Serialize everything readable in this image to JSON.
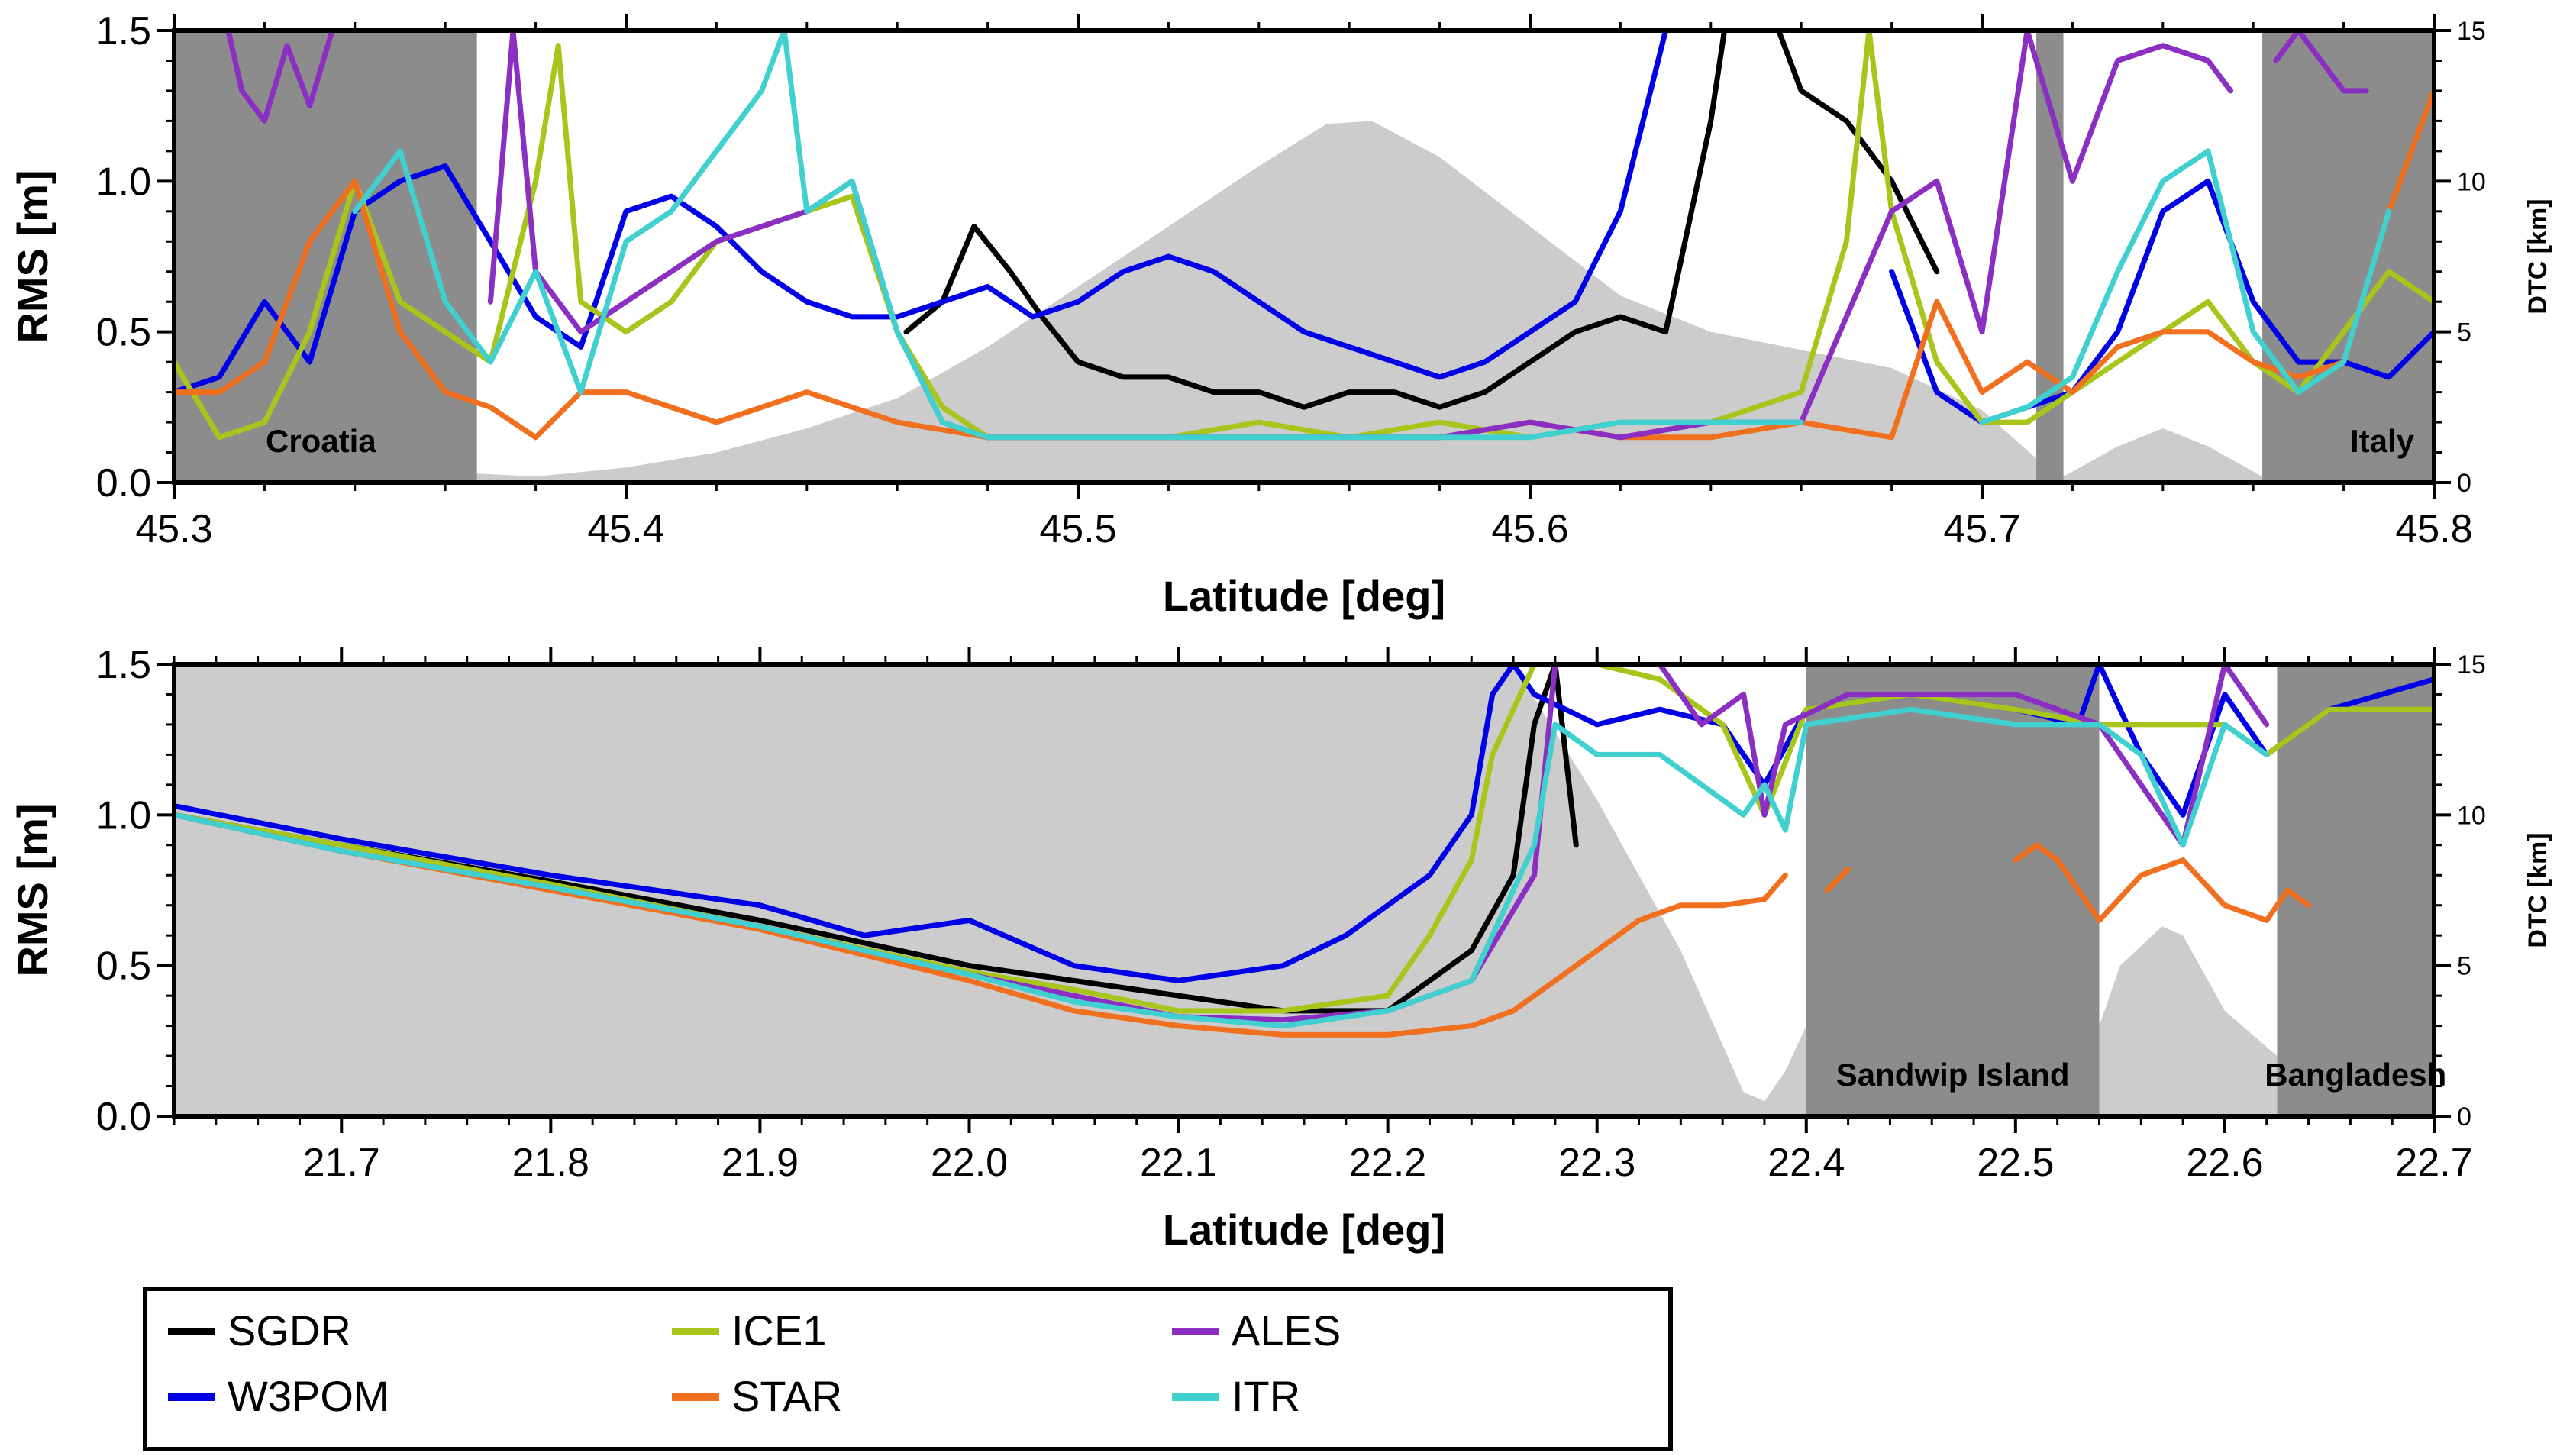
{
  "legend": {
    "entries": [
      {
        "name": "SGDR",
        "color": "#000000"
      },
      {
        "name": "W3POM",
        "color": "#0000e6"
      },
      {
        "name": "ICE1",
        "color": "#a8c51c"
      },
      {
        "name": "STAR",
        "color": "#f07020"
      },
      {
        "name": "ALES",
        "color": "#8a2fc2"
      },
      {
        "name": "ITR",
        "color": "#40d0d0"
      }
    ]
  },
  "chart_data": [
    {
      "type": "line",
      "xlabel": "Latitude [deg]",
      "ylabel": "RMS [m]",
      "y2label": "DTC [km]",
      "xlim": [
        45.3,
        45.8
      ],
      "ylim": [
        0,
        1.5
      ],
      "y2lim": [
        0,
        15
      ],
      "xticks": [
        "45.3",
        "45.4",
        "45.5",
        "45.6",
        "45.7",
        "45.8"
      ],
      "yticks": [
        "0.0",
        "0.5",
        "1.0",
        "1.5"
      ],
      "y2ticks": [
        "0",
        "5",
        "10",
        "15"
      ],
      "land_regions": [
        {
          "x0": 45.3,
          "x1": 45.367,
          "label": "Croatia"
        },
        {
          "x0": 45.712,
          "x1": 45.718,
          "label": ""
        },
        {
          "x0": 45.762,
          "x1": 45.8,
          "label": "Italy"
        }
      ],
      "dtc": {
        "x": [
          45.3,
          45.367,
          45.38,
          45.4,
          45.42,
          45.44,
          45.46,
          45.48,
          45.5,
          45.52,
          45.54,
          45.555,
          45.565,
          45.58,
          45.6,
          45.62,
          45.64,
          45.66,
          45.68,
          45.7,
          45.712,
          45.718,
          45.73,
          45.74,
          45.75,
          45.762,
          45.8
        ],
        "y": [
          0,
          0.3,
          0.2,
          0.5,
          1.0,
          1.8,
          2.8,
          4.5,
          6.5,
          8.5,
          10.5,
          11.9,
          12.0,
          10.8,
          8.5,
          6.2,
          5.0,
          4.4,
          3.8,
          2.4,
          0.8,
          0.2,
          1.2,
          1.8,
          1.2,
          0.2,
          0
        ]
      },
      "series": [
        {
          "name": "SGDR",
          "x": [
            45.462,
            45.47,
            45.477,
            45.485,
            45.492,
            45.5,
            45.51,
            45.52,
            45.53,
            45.54,
            45.55,
            45.56,
            45.57,
            45.58,
            45.59,
            45.6,
            45.61,
            45.62,
            45.63,
            45.64,
            45.643,
            45.645,
            45.655,
            45.66,
            45.67,
            45.68,
            45.69
          ],
          "y": [
            0.5,
            0.6,
            0.85,
            0.7,
            0.55,
            0.4,
            0.35,
            0.35,
            0.3,
            0.3,
            0.25,
            0.3,
            0.3,
            0.25,
            0.3,
            0.4,
            0.5,
            0.55,
            0.5,
            1.2,
            1.5,
            null,
            1.5,
            1.3,
            1.2,
            1.0,
            0.7
          ]
        },
        {
          "name": "W3POM",
          "x": [
            45.3,
            45.31,
            45.32,
            45.33,
            45.34,
            45.35,
            45.36,
            45.37,
            45.38,
            45.39,
            45.4,
            45.41,
            45.42,
            45.43,
            45.44,
            45.45,
            45.46,
            45.47,
            45.48,
            45.49,
            45.5,
            45.51,
            45.52,
            45.53,
            45.54,
            45.55,
            45.56,
            45.57,
            45.58,
            45.59,
            45.6,
            45.61,
            45.62,
            45.625,
            45.63,
            45.632,
            45.68,
            45.69,
            45.7,
            45.71,
            45.72,
            45.73,
            45.74,
            45.75,
            45.76,
            45.77,
            45.78,
            45.79,
            45.8
          ],
          "y": [
            0.3,
            0.35,
            0.6,
            0.4,
            0.9,
            1.0,
            1.05,
            0.8,
            0.55,
            0.45,
            0.9,
            0.95,
            0.85,
            0.7,
            0.6,
            0.55,
            0.55,
            0.6,
            0.65,
            0.55,
            0.6,
            0.7,
            0.75,
            0.7,
            0.6,
            0.5,
            0.45,
            0.4,
            0.35,
            0.4,
            0.5,
            0.6,
            0.9,
            1.2,
            1.5,
            null,
            0.7,
            0.3,
            0.2,
            0.25,
            0.3,
            0.5,
            0.9,
            1.0,
            0.6,
            0.4,
            0.4,
            0.35,
            0.5
          ]
        },
        {
          "name": "ICE1",
          "x": [
            45.3,
            45.31,
            45.32,
            45.33,
            45.34,
            45.35,
            45.36,
            45.37,
            45.38,
            45.385,
            45.39,
            45.4,
            45.41,
            45.42,
            45.43,
            45.44,
            45.45,
            45.46,
            45.47,
            45.48,
            45.5,
            45.52,
            45.54,
            45.56,
            45.58,
            45.6,
            45.62,
            45.64,
            45.66,
            45.67,
            45.675,
            45.68,
            45.69,
            45.7,
            45.71,
            45.72,
            45.73,
            45.74,
            45.75,
            45.76,
            45.77,
            45.78,
            45.79,
            45.8
          ],
          "y": [
            0.4,
            0.15,
            0.2,
            0.5,
            1.0,
            0.6,
            0.5,
            0.4,
            1.0,
            1.45,
            0.6,
            0.5,
            0.6,
            0.8,
            0.85,
            0.9,
            0.95,
            0.5,
            0.25,
            0.15,
            0.15,
            0.15,
            0.2,
            0.15,
            0.2,
            0.15,
            0.2,
            0.2,
            0.3,
            0.8,
            1.5,
            0.9,
            0.4,
            0.2,
            0.2,
            0.3,
            0.4,
            0.5,
            0.6,
            0.4,
            0.3,
            0.5,
            0.7,
            0.6
          ]
        },
        {
          "name": "STAR",
          "x": [
            45.3,
            45.31,
            45.32,
            45.33,
            45.34,
            45.35,
            45.36,
            45.37,
            45.38,
            45.39,
            45.4,
            45.42,
            45.44,
            45.46,
            45.48,
            45.5,
            45.52,
            45.54,
            45.56,
            45.58,
            45.6,
            45.62,
            45.64,
            45.66,
            45.68,
            45.69,
            45.7,
            45.71,
            45.72,
            45.73,
            45.74,
            45.75,
            45.76,
            45.77,
            45.78,
            45.79,
            45.8
          ],
          "y": [
            0.3,
            0.3,
            0.4,
            0.8,
            1.0,
            0.5,
            0.3,
            0.25,
            0.15,
            0.3,
            0.3,
            0.2,
            0.3,
            0.2,
            0.15,
            0.15,
            0.15,
            0.15,
            0.15,
            0.15,
            0.2,
            0.15,
            0.15,
            0.2,
            0.15,
            0.6,
            0.3,
            0.4,
            0.3,
            0.45,
            0.5,
            0.5,
            0.4,
            0.35,
            0.4,
            0.9,
            1.3
          ]
        },
        {
          "name": "ALES",
          "x": [
            45.312,
            45.315,
            45.32,
            45.325,
            45.33,
            45.335,
            null,
            45.37,
            45.375,
            45.38,
            45.39,
            45.4,
            45.42,
            45.44,
            45.45,
            45.46,
            45.47,
            45.48,
            45.5,
            45.52,
            45.54,
            45.56,
            45.58,
            45.6,
            45.62,
            45.64,
            45.66,
            45.68,
            45.69,
            45.7,
            45.71,
            45.72,
            45.73,
            45.74,
            45.75,
            45.755,
            45.76,
            45.765,
            45.77,
            45.78,
            45.785
          ],
          "y": [
            1.5,
            1.3,
            1.2,
            1.45,
            1.25,
            1.5,
            null,
            0.6,
            1.5,
            0.7,
            0.5,
            0.6,
            0.8,
            0.9,
            1.0,
            0.5,
            0.2,
            0.15,
            0.15,
            0.15,
            0.15,
            0.15,
            0.15,
            0.2,
            0.15,
            0.2,
            0.2,
            0.9,
            1.0,
            0.5,
            1.5,
            1.0,
            1.4,
            1.45,
            1.4,
            1.3,
            null,
            1.4,
            1.5,
            1.3,
            1.3
          ]
        },
        {
          "name": "ITR",
          "x": [
            45.34,
            45.35,
            45.36,
            45.37,
            45.38,
            45.39,
            45.4,
            45.41,
            45.42,
            45.43,
            45.435,
            45.44,
            45.45,
            45.46,
            45.47,
            45.48,
            45.5,
            45.52,
            45.54,
            45.56,
            45.58,
            45.6,
            45.62,
            45.64,
            45.66,
            null,
            45.7,
            45.71,
            45.72,
            45.73,
            45.74,
            45.75,
            45.76,
            45.77,
            45.78,
            45.79
          ],
          "y": [
            0.9,
            1.1,
            0.6,
            0.4,
            0.7,
            0.3,
            0.8,
            0.9,
            1.1,
            1.3,
            1.5,
            0.9,
            1.0,
            0.5,
            0.2,
            0.15,
            0.15,
            0.15,
            0.15,
            0.15,
            0.15,
            0.15,
            0.2,
            0.2,
            0.2,
            null,
            0.2,
            0.25,
            0.35,
            0.7,
            1.0,
            1.1,
            0.5,
            0.3,
            0.4,
            0.9
          ]
        }
      ]
    },
    {
      "type": "line",
      "xlabel": "Latitude [deg]",
      "ylabel": "RMS [m]",
      "y2label": "DTC [km]",
      "xlim": [
        21.62,
        22.7
      ],
      "ylim": [
        0,
        1.5
      ],
      "y2lim": [
        0,
        15
      ],
      "xticks": [
        "21.7",
        "21.8",
        "21.9",
        "22.0",
        "22.1",
        "22.2",
        "22.3",
        "22.4",
        "22.5",
        "22.6",
        "22.7"
      ],
      "yticks": [
        "0.0",
        "0.5",
        "1.0",
        "1.5"
      ],
      "y2ticks": [
        "0",
        "5",
        "10",
        "15"
      ],
      "land_regions": [
        {
          "x0": 22.4,
          "x1": 22.54,
          "label": "Sandwip Island"
        },
        {
          "x0": 22.625,
          "x1": 22.7,
          "label": "Bangladesh"
        }
      ],
      "dtc": {
        "x": [
          21.62,
          22.26,
          22.3,
          22.34,
          22.37,
          22.38,
          22.39,
          22.4,
          22.54,
          22.55,
          22.57,
          22.58,
          22.6,
          22.625
        ],
        "y": [
          15,
          15,
          10.5,
          5.5,
          0.8,
          0.5,
          1.5,
          3.0,
          3.0,
          5.0,
          6.3,
          6.0,
          3.5,
          2.0
        ]
      },
      "series": [
        {
          "name": "SGDR",
          "x": [
            21.62,
            21.7,
            21.8,
            21.9,
            22.0,
            22.05,
            22.1,
            22.15,
            22.2,
            22.22,
            22.24,
            22.26,
            22.27,
            22.28,
            22.29
          ],
          "y": [
            1.0,
            0.9,
            0.78,
            0.65,
            0.5,
            0.45,
            0.4,
            0.35,
            0.35,
            0.45,
            0.55,
            0.8,
            1.3,
            1.5,
            0.9
          ]
        },
        {
          "name": "W3POM",
          "x": [
            21.62,
            21.7,
            21.8,
            21.9,
            21.95,
            22.0,
            22.05,
            22.1,
            22.15,
            22.18,
            22.2,
            22.22,
            22.24,
            22.25,
            22.26,
            22.27,
            22.3,
            22.33,
            22.36,
            22.38,
            22.4,
            22.45,
            22.5,
            22.53,
            22.54,
            22.56,
            22.58,
            22.6,
            22.62,
            22.65,
            22.7
          ],
          "y": [
            1.03,
            0.92,
            0.8,
            0.7,
            0.6,
            0.65,
            0.5,
            0.45,
            0.5,
            0.6,
            0.7,
            0.8,
            1.0,
            1.4,
            1.5,
            1.4,
            1.3,
            1.35,
            1.3,
            1.1,
            1.35,
            1.4,
            1.35,
            1.3,
            1.5,
            1.2,
            1.0,
            1.4,
            1.2,
            1.35,
            1.45
          ]
        },
        {
          "name": "ICE1",
          "x": [
            21.62,
            21.7,
            21.8,
            21.9,
            22.0,
            22.05,
            22.1,
            22.15,
            22.2,
            22.22,
            22.24,
            22.25,
            22.27,
            22.3,
            22.33,
            22.36,
            22.38,
            22.4,
            22.45,
            22.5,
            22.54,
            22.6,
            22.62,
            22.65,
            22.7
          ],
          "y": [
            1.0,
            0.9,
            0.77,
            0.63,
            0.48,
            0.42,
            0.35,
            0.35,
            0.4,
            0.6,
            0.85,
            1.2,
            1.5,
            1.5,
            1.45,
            1.3,
            1.0,
            1.35,
            1.4,
            1.35,
            1.3,
            1.3,
            1.2,
            1.35,
            1.35
          ]
        },
        {
          "name": "STAR",
          "x": [
            21.62,
            21.7,
            21.8,
            21.9,
            22.0,
            22.05,
            22.1,
            22.15,
            22.2,
            22.24,
            22.26,
            22.28,
            22.3,
            22.32,
            22.34,
            22.36,
            22.38,
            22.39,
            null,
            22.41,
            22.42,
            null,
            22.5,
            22.51,
            22.52,
            22.54,
            22.56,
            22.58,
            22.6,
            22.62,
            22.63,
            22.64
          ],
          "y": [
            1.0,
            0.88,
            0.75,
            0.62,
            0.45,
            0.35,
            0.3,
            0.27,
            0.27,
            0.3,
            0.35,
            0.45,
            0.55,
            0.65,
            0.7,
            0.7,
            0.72,
            0.8,
            null,
            0.75,
            0.82,
            null,
            0.85,
            0.9,
            0.85,
            0.65,
            0.8,
            0.85,
            0.7,
            0.65,
            0.75,
            0.7
          ]
        },
        {
          "name": "ALES",
          "x": [
            21.62,
            21.7,
            21.8,
            21.9,
            22.0,
            22.05,
            22.1,
            22.15,
            22.2,
            22.24,
            22.27,
            22.28,
            22.3,
            22.33,
            22.35,
            22.37,
            22.38,
            22.39,
            22.42,
            22.5,
            22.54,
            22.56,
            22.58,
            22.6,
            22.62
          ],
          "y": [
            1.0,
            0.88,
            0.76,
            0.63,
            0.47,
            0.4,
            0.33,
            0.32,
            0.35,
            0.45,
            0.8,
            1.5,
            1.5,
            1.5,
            1.3,
            1.4,
            1.0,
            1.3,
            1.4,
            1.4,
            1.3,
            1.1,
            0.9,
            1.5,
            1.3
          ]
        },
        {
          "name": "ITR",
          "x": [
            21.62,
            21.7,
            21.8,
            21.9,
            22.0,
            22.05,
            22.1,
            22.15,
            22.2,
            22.24,
            22.27,
            22.28,
            22.3,
            22.33,
            22.35,
            22.37,
            22.38,
            22.39,
            22.4,
            22.45,
            22.5,
            22.54,
            22.56,
            22.58,
            22.6,
            22.62
          ],
          "y": [
            1.0,
            0.88,
            0.76,
            0.63,
            0.47,
            0.38,
            0.33,
            0.3,
            0.35,
            0.45,
            0.9,
            1.3,
            1.2,
            1.2,
            1.1,
            1.0,
            1.1,
            0.95,
            1.3,
            1.35,
            1.3,
            1.3,
            1.2,
            0.9,
            1.3,
            1.2
          ]
        }
      ]
    }
  ]
}
